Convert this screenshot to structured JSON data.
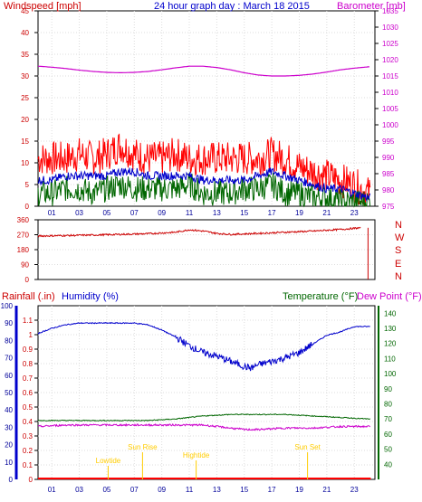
{
  "colors": {
    "background": "#ffffff",
    "red": "#ff0000",
    "darkred": "#cc0000",
    "blue": "#0000cc",
    "darkblue": "#000099",
    "green": "#006600",
    "magenta": "#cc00cc",
    "yellow": "#ffcc00",
    "grid": "#aaaaaa"
  },
  "header": {
    "windspeed_label": "Windspeed [mph]",
    "title": "24 hour graph day : March 18 2015",
    "barometer_label": "Barometer [mb]"
  },
  "lower_header": {
    "rainfall_label": "Rainfall (.in)",
    "humidity_label": "Humidity (%)",
    "temperature_label": "Temperature (°F)",
    "dewpoint_label": "Dew Point (°F)"
  },
  "compass_letters": [
    "N",
    "W",
    "S",
    "E",
    "N"
  ],
  "events": [
    {
      "label": "Lowtide",
      "hour": 5.1
    },
    {
      "label": "Sun Rise",
      "hour": 7.6
    },
    {
      "label": "Hightide",
      "hour": 11.5
    },
    {
      "label": "Sun Set",
      "hour": 19.6
    }
  ],
  "chart_data": [
    {
      "type": "line",
      "panel": "wind-barometer",
      "x_ticks": [
        "01",
        "03",
        "05",
        "07",
        "09",
        "11",
        "13",
        "15",
        "17",
        "19",
        "21",
        "23"
      ],
      "x_range": [
        0,
        24.5
      ],
      "y_left_range": [
        0,
        45
      ],
      "y_left_ticks": [
        0,
        5,
        10,
        15,
        20,
        25,
        30,
        35,
        40,
        45
      ],
      "y_right_range": [
        975,
        1035
      ],
      "y_right_ticks": [
        975,
        980,
        985,
        990,
        995,
        1000,
        1005,
        1010,
        1015,
        1020,
        1025,
        1030,
        1035
      ],
      "series": [
        {
          "name": "Windspeed",
          "axis": "left",
          "color": "#ff0000",
          "x": [
            0,
            1,
            2,
            3,
            4,
            5,
            6,
            7,
            8,
            9,
            10,
            11,
            12,
            13,
            14,
            15,
            16,
            17,
            18,
            19,
            20,
            21,
            22,
            23,
            24
          ],
          "values": [
            11,
            11,
            11,
            12,
            11,
            12,
            14,
            12,
            11,
            11,
            12,
            11,
            11,
            11,
            11,
            11,
            11,
            12,
            11,
            9,
            8,
            7,
            6,
            5,
            3
          ]
        },
        {
          "name": "Average wind",
          "axis": "left",
          "color": "#0000cc",
          "x": [
            0,
            1,
            2,
            3,
            4,
            5,
            6,
            7,
            8,
            9,
            10,
            11,
            12,
            13,
            14,
            15,
            16,
            17,
            18,
            19,
            20,
            21,
            22,
            23,
            24
          ],
          "values": [
            6,
            6,
            7,
            7,
            7,
            7,
            8,
            8,
            7,
            7,
            7,
            7,
            6,
            6,
            6,
            6,
            7,
            8,
            7,
            6,
            5,
            4,
            4,
            3,
            2
          ]
        },
        {
          "name": "Lull",
          "axis": "left",
          "color": "#006600",
          "x": [
            0,
            1,
            2,
            3,
            4,
            5,
            6,
            7,
            8,
            9,
            10,
            11,
            12,
            13,
            14,
            15,
            16,
            17,
            18,
            19,
            20,
            21,
            22,
            23,
            24
          ],
          "values": [
            3,
            3,
            4,
            4,
            3,
            4,
            5,
            4,
            4,
            4,
            4,
            5,
            3,
            3,
            3,
            4,
            4,
            5,
            3,
            3,
            2,
            2,
            1,
            1,
            1
          ]
        },
        {
          "name": "Barometer",
          "axis": "right",
          "color": "#cc00cc",
          "x": [
            0,
            1,
            2,
            3,
            4,
            5,
            6,
            7,
            8,
            9,
            10,
            11,
            12,
            13,
            14,
            15,
            16,
            17,
            18,
            19,
            20,
            21,
            22,
            23,
            24
          ],
          "values": [
            1018,
            1017.7,
            1017.3,
            1016.8,
            1016.4,
            1016.1,
            1016,
            1016.1,
            1016.4,
            1016.9,
            1017.5,
            1018,
            1018,
            1017.6,
            1016.9,
            1016,
            1015.3,
            1015,
            1015,
            1015.2,
            1015.6,
            1016.2,
            1016.9,
            1017.4,
            1017.8
          ]
        }
      ]
    },
    {
      "type": "line",
      "panel": "wind-direction",
      "x_range": [
        0,
        24.5
      ],
      "y_left_range": [
        0,
        360
      ],
      "y_left_ticks": [
        0,
        90,
        180,
        270,
        360
      ],
      "series": [
        {
          "name": "Wind direction",
          "color": "#cc0000",
          "x": [
            0,
            2,
            4,
            6,
            8,
            10,
            11,
            12,
            13,
            14,
            16,
            18,
            20,
            22,
            23.5,
            24
          ],
          "values": [
            262,
            265,
            268,
            272,
            276,
            285,
            300,
            292,
            278,
            272,
            278,
            285,
            292,
            302,
            312,
            0
          ]
        }
      ]
    },
    {
      "type": "line",
      "panel": "rain-humidity-temp",
      "x_ticks": [
        "01",
        "03",
        "05",
        "07",
        "09",
        "11",
        "13",
        "15",
        "17",
        "19",
        "21",
        "23"
      ],
      "x_range": [
        0,
        24.5
      ],
      "rain_range": [
        0,
        1.2
      ],
      "rain_ticks": [
        0,
        0.1,
        0.2,
        0.3,
        0.4,
        0.5,
        0.6,
        0.7,
        0.8,
        0.9,
        1,
        1.1
      ],
      "humidity_range": [
        0,
        100
      ],
      "humidity_ticks": [
        0,
        10,
        20,
        30,
        40,
        50,
        60,
        70,
        80,
        90,
        100
      ],
      "temp_range": [
        30,
        145
      ],
      "temp_ticks": [
        40,
        50,
        60,
        70,
        80,
        90,
        100,
        110,
        120,
        130,
        140
      ],
      "series": [
        {
          "name": "Humidity",
          "axis": "humidity",
          "color": "#0000cc",
          "x": [
            0,
            1,
            2,
            3,
            4,
            5,
            6,
            7,
            8,
            9,
            10,
            11,
            12,
            13,
            14,
            15,
            15.5,
            16,
            17,
            18,
            19,
            20,
            21,
            22,
            23,
            24
          ],
          "values": [
            84,
            87,
            89,
            90,
            90,
            90,
            90,
            90,
            89,
            86,
            82,
            77,
            73,
            71,
            68,
            65,
            64,
            66,
            68,
            70,
            73,
            78,
            83,
            85,
            88,
            88
          ]
        },
        {
          "name": "Temperature",
          "axis": "temp",
          "color": "#006600",
          "x": [
            0,
            2,
            4,
            6,
            8,
            10,
            12,
            14,
            16,
            18,
            20,
            22,
            24
          ],
          "values": [
            69,
            69,
            69,
            69,
            69,
            70,
            72,
            73,
            73,
            73,
            72,
            71,
            70
          ]
        },
        {
          "name": "Dew Point",
          "axis": "temp",
          "color": "#cc00cc",
          "x": [
            0,
            2,
            4,
            6,
            8,
            10,
            12,
            14,
            15,
            16,
            18,
            20,
            22,
            24
          ],
          "values": [
            65,
            66,
            66,
            66,
            66,
            66,
            66,
            64,
            63,
            63,
            64,
            64,
            65,
            65
          ]
        },
        {
          "name": "Rainfall",
          "axis": "rain",
          "color": "#ff0000",
          "x": [
            0,
            24
          ],
          "values": [
            0,
            0
          ]
        }
      ]
    }
  ]
}
